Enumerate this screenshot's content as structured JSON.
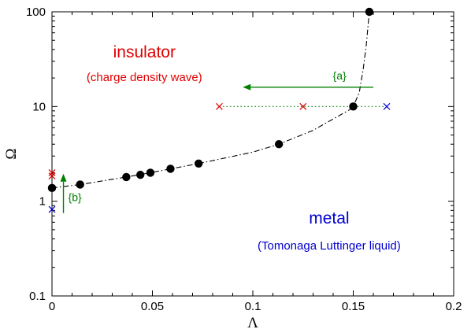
{
  "chart_data": {
    "type": "scatter",
    "title": "",
    "xlabel": "Λ",
    "ylabel": "Ω",
    "xlim": [
      0,
      0.2
    ],
    "ylim": [
      0.1,
      100
    ],
    "yscale": "log",
    "xticks": [
      0,
      0.05,
      0.1,
      0.15,
      0.2
    ],
    "xtick_labels": [
      "0",
      "0.05",
      "0.1",
      "0.15",
      "0.2"
    ],
    "yticks": [
      0.1,
      1,
      10,
      100
    ],
    "ytick_labels": [
      "0.1",
      "1",
      "10",
      "100"
    ],
    "grid": false,
    "series": [
      {
        "style": "points",
        "marker": "circle",
        "color": "#000000",
        "x": [
          0.0,
          0.014,
          0.037,
          0.044,
          0.049,
          0.059,
          0.073,
          0.113,
          0.15,
          0.158
        ],
        "y": [
          1.38,
          1.5,
          1.8,
          1.9,
          2.0,
          2.2,
          2.5,
          4.0,
          10.0,
          100.0
        ]
      },
      {
        "style": "line",
        "dash": "dashdot",
        "color": "#000000",
        "x": [
          0.0,
          0.014,
          0.037,
          0.049,
          0.073,
          0.1,
          0.113,
          0.13,
          0.142,
          0.148,
          0.15,
          0.153,
          0.155,
          0.1565,
          0.158
        ],
        "y": [
          1.38,
          1.5,
          1.8,
          2.0,
          2.5,
          3.3,
          4.0,
          5.6,
          7.8,
          9.2,
          10.0,
          14.0,
          25.0,
          45.0,
          100.0
        ]
      },
      {
        "style": "points",
        "marker": "x",
        "color": "#e00000",
        "x": [
          0.0,
          0.0,
          0.0833,
          0.125
        ],
        "y": [
          2.0,
          1.85,
          10.0,
          10.0
        ]
      },
      {
        "style": "points",
        "marker": "x",
        "color": "#0000d0",
        "x": [
          0.0,
          0.1667
        ],
        "y": [
          0.82,
          10.0
        ]
      },
      {
        "style": "line",
        "dash": "dotted",
        "color": "#008000",
        "x": [
          0.0833,
          0.1667
        ],
        "y": [
          10.0,
          10.0
        ]
      }
    ],
    "arrows": [
      {
        "label": "{a}",
        "color": "#008000",
        "from": [
          0.16,
          16.0
        ],
        "to": [
          0.095,
          16.0
        ]
      },
      {
        "label": "{b}",
        "color": "#008000",
        "from": [
          0.0057,
          0.75
        ],
        "to": [
          0.0057,
          1.95
        ]
      }
    ],
    "annotations": [
      {
        "text": "insulator",
        "color": "#e00000",
        "x": 0.046,
        "y": 33.0,
        "size": "large"
      },
      {
        "text": "(charge density wave)",
        "color": "#e00000",
        "x": 0.046,
        "y": 18.5,
        "size": "small"
      },
      {
        "text": "metal",
        "color": "#0000d0",
        "x": 0.138,
        "y": 0.58,
        "size": "large"
      },
      {
        "text": "(Tomonaga Luttinger liquid)",
        "color": "#0000d0",
        "x": 0.138,
        "y": 0.31,
        "size": "small"
      }
    ]
  }
}
